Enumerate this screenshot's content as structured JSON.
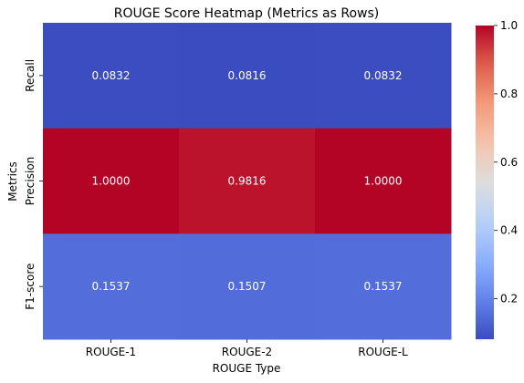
{
  "chart_data": {
    "type": "heatmap",
    "title": "ROUGE Score Heatmap (Metrics as Rows)",
    "xlabel": "ROUGE Type",
    "ylabel": "Metrics",
    "x": [
      "ROUGE-1",
      "ROUGE-2",
      "ROUGE-L"
    ],
    "y": [
      "Recall",
      "Precision",
      "F1-score"
    ],
    "values": [
      [
        0.0832,
        0.0816,
        0.0832
      ],
      [
        1.0,
        0.9816,
        1.0
      ],
      [
        0.1537,
        0.1507,
        0.1537
      ]
    ],
    "value_labels": [
      [
        "0.0832",
        "0.0816",
        "0.0832"
      ],
      [
        "1.0000",
        "0.9816",
        "1.0000"
      ],
      [
        "0.1537",
        "0.1507",
        "0.1537"
      ]
    ],
    "colorbar": {
      "colormap": "coolwarm",
      "range": [
        0.0816,
        1.0
      ],
      "ticks": [
        0.2,
        0.4,
        0.6,
        0.8,
        1.0
      ],
      "tick_labels": [
        "0.2",
        "0.4",
        "0.6",
        "0.8",
        "1.0"
      ]
    },
    "grid": false
  }
}
